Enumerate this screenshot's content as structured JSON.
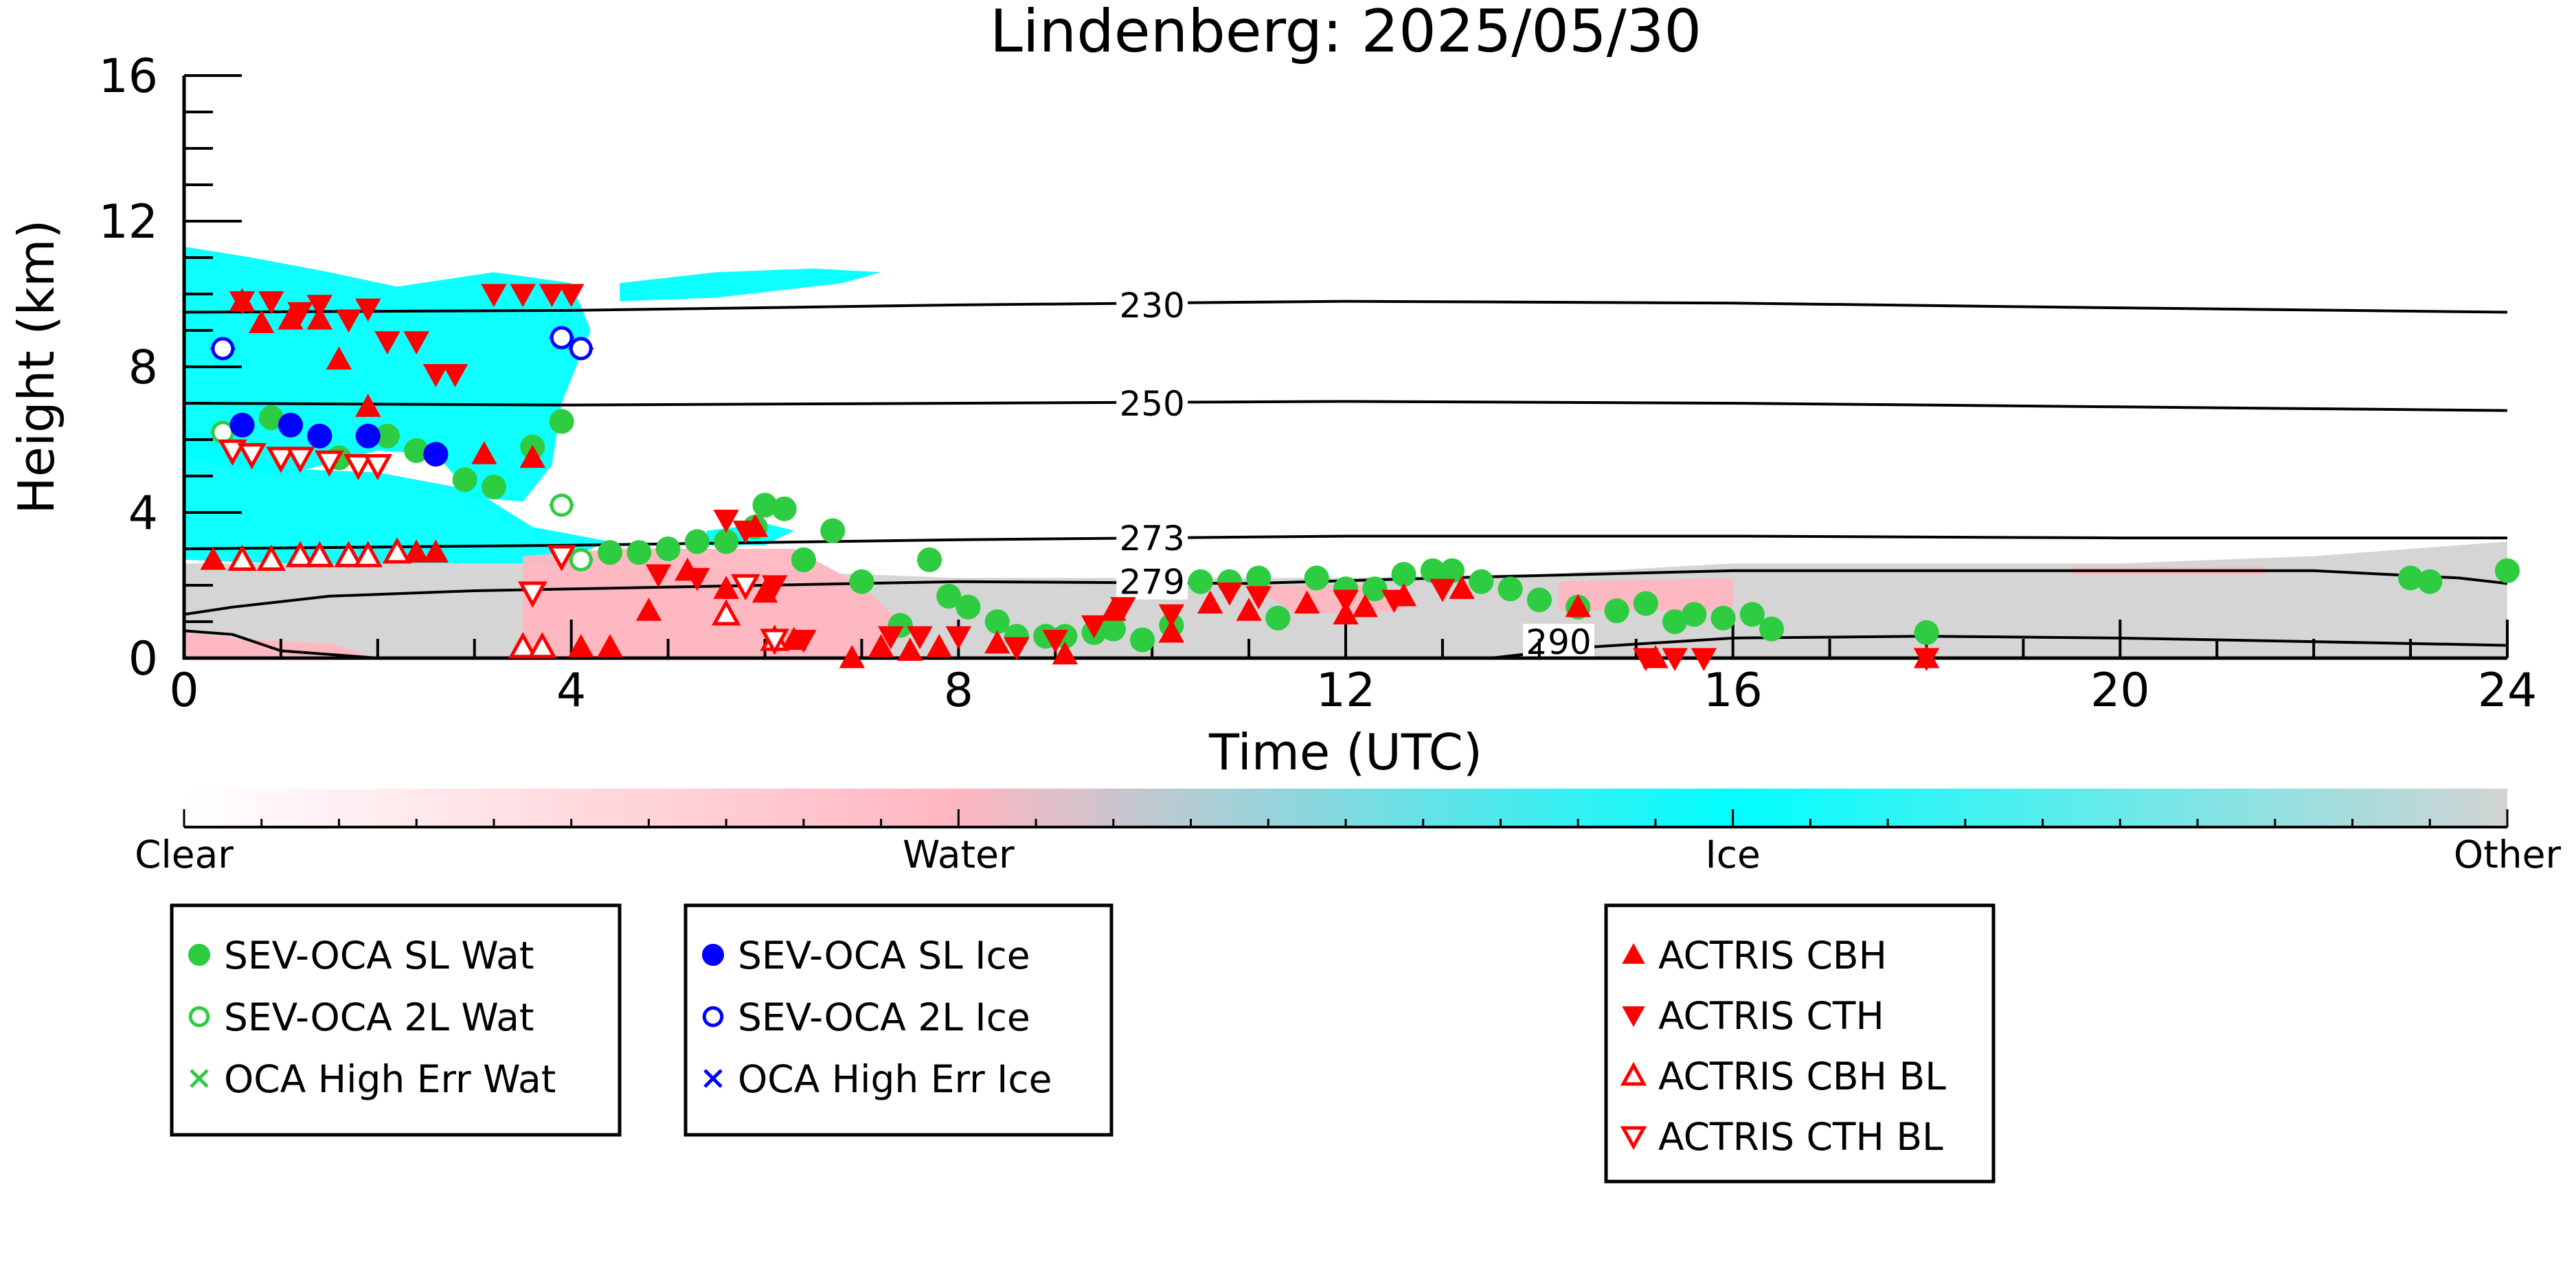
{
  "chart_data": {
    "type": "scatter",
    "title": "Lindenberg: 2025/05/30",
    "xlabel": "Time (UTC)",
    "ylabel": "Height (km)",
    "xlim": [
      0,
      24
    ],
    "ylim": [
      0,
      16
    ],
    "xticks": [
      "0",
      "4",
      "8",
      "12",
      "16",
      "20",
      "24"
    ],
    "yticks": [
      "0",
      "4",
      "8",
      "12",
      "16"
    ],
    "colorbar": {
      "labels": [
        "Clear",
        "Water",
        "Ice",
        "Other"
      ],
      "colors": [
        "#ffffff",
        "#ffb6c1",
        "#00ffff",
        "#d3d3d3"
      ]
    },
    "contours": [
      {
        "label": "230",
        "points": [
          [
            0,
            9.5
          ],
          [
            4,
            9.55
          ],
          [
            8,
            9.7
          ],
          [
            12,
            9.8
          ],
          [
            16,
            9.75
          ],
          [
            19,
            9.65
          ],
          [
            24,
            9.5
          ]
        ]
      },
      {
        "label": "250",
        "points": [
          [
            0,
            7.0
          ],
          [
            4,
            6.95
          ],
          [
            8,
            7.0
          ],
          [
            12,
            7.05
          ],
          [
            16,
            7.0
          ],
          [
            20,
            6.9
          ],
          [
            24,
            6.8
          ]
        ]
      },
      {
        "label": "273",
        "points": [
          [
            0,
            3.0
          ],
          [
            4,
            3.1
          ],
          [
            8,
            3.25
          ],
          [
            12,
            3.35
          ],
          [
            16,
            3.35
          ],
          [
            20,
            3.3
          ],
          [
            24,
            3.3
          ]
        ]
      },
      {
        "label": "279",
        "points": [
          [
            0,
            1.2
          ],
          [
            0.5,
            1.4
          ],
          [
            1.5,
            1.7
          ],
          [
            3,
            1.85
          ],
          [
            5,
            1.95
          ],
          [
            8,
            2.1
          ],
          [
            11,
            2.05
          ],
          [
            13,
            2.2
          ],
          [
            16,
            2.4
          ],
          [
            19,
            2.4
          ],
          [
            22,
            2.4
          ],
          [
            23.5,
            2.2
          ],
          [
            24,
            2.05
          ]
        ]
      },
      {
        "label": "290",
        "points": [
          [
            0,
            0.75
          ],
          [
            0.5,
            0.65
          ],
          [
            1,
            0.2
          ],
          [
            2,
            0.0
          ]
        ],
        "points2": [
          [
            13.5,
            0.0
          ],
          [
            14.5,
            0.3
          ],
          [
            16,
            0.55
          ],
          [
            18,
            0.6
          ],
          [
            20,
            0.55
          ],
          [
            22,
            0.45
          ],
          [
            24,
            0.35
          ]
        ]
      }
    ],
    "series": [
      {
        "name": "SEV-OCA SL Wat",
        "marker": "filled-circle",
        "color": "#2ecc40",
        "points": [
          [
            0.9,
            6.6
          ],
          [
            1.6,
            5.5
          ],
          [
            2.1,
            6.1
          ],
          [
            2.4,
            5.7
          ],
          [
            2.9,
            4.9
          ],
          [
            3.2,
            4.7
          ],
          [
            3.6,
            5.8
          ],
          [
            3.9,
            6.5
          ],
          [
            4.4,
            2.9
          ],
          [
            4.7,
            2.9
          ],
          [
            5.0,
            3.0
          ],
          [
            5.3,
            3.2
          ],
          [
            5.6,
            3.2
          ],
          [
            5.9,
            3.6
          ],
          [
            6.0,
            4.2
          ],
          [
            6.2,
            4.1
          ],
          [
            6.4,
            2.7
          ],
          [
            6.7,
            3.5
          ],
          [
            7.0,
            2.1
          ],
          [
            7.4,
            0.9
          ],
          [
            7.7,
            2.7
          ],
          [
            7.9,
            1.7
          ],
          [
            8.1,
            1.4
          ],
          [
            8.4,
            1.0
          ],
          [
            8.6,
            0.6
          ],
          [
            8.9,
            0.6
          ],
          [
            9.1,
            0.6
          ],
          [
            9.4,
            0.7
          ],
          [
            9.6,
            0.8
          ],
          [
            9.9,
            0.5
          ],
          [
            10.2,
            0.9
          ],
          [
            10.5,
            2.1
          ],
          [
            10.8,
            2.1
          ],
          [
            11.1,
            2.2
          ],
          [
            11.3,
            1.1
          ],
          [
            11.7,
            2.2
          ],
          [
            12.0,
            1.9
          ],
          [
            12.3,
            1.9
          ],
          [
            12.6,
            2.3
          ],
          [
            12.9,
            2.4
          ],
          [
            13.1,
            2.4
          ],
          [
            13.4,
            2.1
          ],
          [
            13.7,
            1.9
          ],
          [
            14.0,
            1.6
          ],
          [
            14.4,
            1.4
          ],
          [
            14.8,
            1.3
          ],
          [
            15.1,
            1.5
          ],
          [
            15.4,
            1.0
          ],
          [
            15.6,
            1.2
          ],
          [
            15.9,
            1.1
          ],
          [
            16.2,
            1.2
          ],
          [
            16.4,
            0.8
          ],
          [
            18.0,
            0.7
          ],
          [
            23.0,
            2.2
          ],
          [
            23.2,
            2.1
          ],
          [
            24.0,
            2.4
          ]
        ]
      },
      {
        "name": "SEV-OCA 2L Wat",
        "marker": "open-circle",
        "color": "#2ecc40",
        "points": [
          [
            0.4,
            6.2
          ],
          [
            3.9,
            4.2
          ],
          [
            4.1,
            2.7
          ]
        ]
      },
      {
        "name": "OCA High Err Wat",
        "marker": "x",
        "color": "#2ecc40",
        "points": []
      },
      {
        "name": "SEV-OCA SL Ice",
        "marker": "filled-circle",
        "color": "#0000ff",
        "points": [
          [
            0.6,
            6.4
          ],
          [
            1.1,
            6.4
          ],
          [
            1.4,
            6.1
          ],
          [
            1.9,
            6.1
          ],
          [
            2.6,
            5.6
          ]
        ]
      },
      {
        "name": "SEV-OCA 2L Ice",
        "marker": "open-circle",
        "color": "#0000ff",
        "points": [
          [
            0.4,
            8.5
          ],
          [
            3.9,
            8.8
          ],
          [
            4.1,
            8.5
          ]
        ]
      },
      {
        "name": "OCA High Err Ice",
        "marker": "x",
        "color": "#0000ff",
        "points": []
      },
      {
        "name": "ACTRIS CBH",
        "marker": "filled-triangle-up",
        "color": "#ff0000",
        "points": [
          [
            0.3,
            2.7
          ],
          [
            0.6,
            9.8
          ],
          [
            0.8,
            9.2
          ],
          [
            1.1,
            9.3
          ],
          [
            1.4,
            9.3
          ],
          [
            1.6,
            8.2
          ],
          [
            1.9,
            6.9
          ],
          [
            2.4,
            2.9
          ],
          [
            2.6,
            2.9
          ],
          [
            3.1,
            5.6
          ],
          [
            3.6,
            5.5
          ],
          [
            4.1,
            0.3
          ],
          [
            4.4,
            0.3
          ],
          [
            4.8,
            1.3
          ],
          [
            5.2,
            2.4
          ],
          [
            5.6,
            1.9
          ],
          [
            5.9,
            3.6
          ],
          [
            6.0,
            1.8
          ],
          [
            6.3,
            0.5
          ],
          [
            6.9,
            0.0
          ],
          [
            7.2,
            0.3
          ],
          [
            7.5,
            0.2
          ],
          [
            7.8,
            0.3
          ],
          [
            8.4,
            0.4
          ],
          [
            9.1,
            0.1
          ],
          [
            9.6,
            1.3
          ],
          [
            10.2,
            0.7
          ],
          [
            10.6,
            1.5
          ],
          [
            11.0,
            1.3
          ],
          [
            11.6,
            1.5
          ],
          [
            12.0,
            1.2
          ],
          [
            12.2,
            1.4
          ],
          [
            12.6,
            1.7
          ],
          [
            13.2,
            1.9
          ],
          [
            14.4,
            1.4
          ],
          [
            15.2,
            0.0
          ],
          [
            18.0,
            0.0
          ]
        ]
      },
      {
        "name": "ACTRIS CTH",
        "marker": "filled-triangle-down",
        "color": "#ff0000",
        "points": [
          [
            0.6,
            9.8
          ],
          [
            0.9,
            9.8
          ],
          [
            1.2,
            9.5
          ],
          [
            1.4,
            9.7
          ],
          [
            1.7,
            9.3
          ],
          [
            1.9,
            9.6
          ],
          [
            2.1,
            8.7
          ],
          [
            2.4,
            8.7
          ],
          [
            2.6,
            7.8
          ],
          [
            2.8,
            7.8
          ],
          [
            3.2,
            10.0
          ],
          [
            3.5,
            10.0
          ],
          [
            3.8,
            10.0
          ],
          [
            4.0,
            10.0
          ],
          [
            4.9,
            2.3
          ],
          [
            5.3,
            2.2
          ],
          [
            5.6,
            3.8
          ],
          [
            5.8,
            3.5
          ],
          [
            6.1,
            2.0
          ],
          [
            6.4,
            0.5
          ],
          [
            7.3,
            0.6
          ],
          [
            7.6,
            0.6
          ],
          [
            8.0,
            0.6
          ],
          [
            8.6,
            0.3
          ],
          [
            9.0,
            0.5
          ],
          [
            9.4,
            0.9
          ],
          [
            9.7,
            1.4
          ],
          [
            10.2,
            1.2
          ],
          [
            10.8,
            1.8
          ],
          [
            11.1,
            1.7
          ],
          [
            12.0,
            1.6
          ],
          [
            12.5,
            1.6
          ],
          [
            13.0,
            1.9
          ],
          [
            15.1,
            0.0
          ],
          [
            15.4,
            0.0
          ],
          [
            15.7,
            0.0
          ],
          [
            18.0,
            0.0
          ]
        ]
      },
      {
        "name": "ACTRIS CBH BL",
        "marker": "open-triangle-up",
        "color": "#ff0000",
        "points": [
          [
            0.6,
            2.7
          ],
          [
            0.9,
            2.7
          ],
          [
            1.2,
            2.8
          ],
          [
            1.4,
            2.8
          ],
          [
            1.7,
            2.8
          ],
          [
            1.9,
            2.8
          ],
          [
            2.2,
            2.9
          ],
          [
            3.5,
            0.3
          ],
          [
            3.7,
            0.3
          ],
          [
            5.6,
            1.2
          ],
          [
            6.1,
            0.5
          ]
        ]
      },
      {
        "name": "ACTRIS CTH BL",
        "marker": "open-triangle-down",
        "color": "#ff0000",
        "points": [
          [
            0.5,
            5.7
          ],
          [
            0.7,
            5.6
          ],
          [
            1.0,
            5.5
          ],
          [
            1.2,
            5.5
          ],
          [
            1.5,
            5.4
          ],
          [
            1.8,
            5.3
          ],
          [
            2.0,
            5.3
          ],
          [
            3.6,
            1.8
          ],
          [
            3.9,
            2.8
          ],
          [
            5.8,
            2.0
          ],
          [
            6.1,
            0.5
          ]
        ]
      }
    ],
    "legend_groups": [
      [
        "SEV-OCA SL Wat",
        "SEV-OCA 2L Wat",
        "OCA High Err Wat"
      ],
      [
        "SEV-OCA SL Ice",
        "SEV-OCA 2L Ice",
        "OCA High Err Ice"
      ],
      [
        "ACTRIS CBH",
        "ACTRIS CTH",
        "ACTRIS CBH BL",
        "ACTRIS CTH BL"
      ]
    ],
    "grid": false,
    "legend_placement": "below"
  }
}
